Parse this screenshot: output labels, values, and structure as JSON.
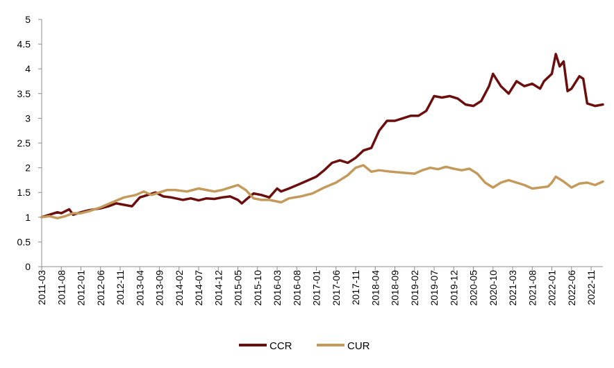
{
  "chart_data": {
    "type": "line",
    "title": "",
    "xlabel": "",
    "ylabel": "",
    "ylim": [
      0,
      5
    ],
    "y_ticks": [
      "0",
      "0.5",
      "1",
      "1.5",
      "2",
      "2.5",
      "3",
      "3.5",
      "4",
      "4.5",
      "5"
    ],
    "x_ticks": [
      "2011-03",
      "2011-08",
      "2012-01",
      "2012-06",
      "2012-11",
      "2013-04",
      "2013-09",
      "2014-02",
      "2014-07",
      "2014-12",
      "2015-05",
      "2015-10",
      "2016-03",
      "2016-08",
      "2017-01",
      "2017-06",
      "2017-11",
      "2018-04",
      "2018-09",
      "2019-02",
      "2019-07",
      "2019-12",
      "2020-05",
      "2020-10",
      "2021-03",
      "2021-08",
      "2022-01",
      "2022-06",
      "2022-11"
    ],
    "x_range": [
      "2011-03",
      "2023-02"
    ],
    "grid": false,
    "legend_position": "bottom",
    "series": [
      {
        "name": "CCR",
        "color": "#6B0E0E",
        "points": [
          [
            "2011-03",
            1.0
          ],
          [
            "2011-05",
            1.05
          ],
          [
            "2011-07",
            1.1
          ],
          [
            "2011-08",
            1.08
          ],
          [
            "2011-10",
            1.16
          ],
          [
            "2011-11",
            1.05
          ],
          [
            "2012-01",
            1.1
          ],
          [
            "2012-03",
            1.14
          ],
          [
            "2012-06",
            1.18
          ],
          [
            "2012-08",
            1.22
          ],
          [
            "2012-10",
            1.28
          ],
          [
            "2012-12",
            1.25
          ],
          [
            "2013-02",
            1.22
          ],
          [
            "2013-04",
            1.4
          ],
          [
            "2013-06",
            1.45
          ],
          [
            "2013-08",
            1.5
          ],
          [
            "2013-10",
            1.42
          ],
          [
            "2013-12",
            1.4
          ],
          [
            "2014-03",
            1.35
          ],
          [
            "2014-05",
            1.38
          ],
          [
            "2014-07",
            1.34
          ],
          [
            "2014-09",
            1.38
          ],
          [
            "2014-11",
            1.37
          ],
          [
            "2015-01",
            1.4
          ],
          [
            "2015-03",
            1.42
          ],
          [
            "2015-05",
            1.35
          ],
          [
            "2015-06",
            1.28
          ],
          [
            "2015-07",
            1.35
          ],
          [
            "2015-09",
            1.48
          ],
          [
            "2015-11",
            1.45
          ],
          [
            "2016-01",
            1.4
          ],
          [
            "2016-03",
            1.58
          ],
          [
            "2016-04",
            1.52
          ],
          [
            "2016-06",
            1.58
          ],
          [
            "2016-09",
            1.68
          ],
          [
            "2016-11",
            1.75
          ],
          [
            "2017-01",
            1.82
          ],
          [
            "2017-03",
            1.95
          ],
          [
            "2017-05",
            2.1
          ],
          [
            "2017-07",
            2.15
          ],
          [
            "2017-09",
            2.1
          ],
          [
            "2017-11",
            2.2
          ],
          [
            "2018-01",
            2.35
          ],
          [
            "2018-03",
            2.4
          ],
          [
            "2018-05",
            2.75
          ],
          [
            "2018-07",
            2.95
          ],
          [
            "2018-09",
            2.95
          ],
          [
            "2018-11",
            3.0
          ],
          [
            "2019-01",
            3.05
          ],
          [
            "2019-03",
            3.05
          ],
          [
            "2019-05",
            3.15
          ],
          [
            "2019-07",
            3.45
          ],
          [
            "2019-09",
            3.42
          ],
          [
            "2019-11",
            3.45
          ],
          [
            "2020-01",
            3.4
          ],
          [
            "2020-03",
            3.28
          ],
          [
            "2020-05",
            3.25
          ],
          [
            "2020-07",
            3.35
          ],
          [
            "2020-09",
            3.65
          ],
          [
            "2020-10",
            3.9
          ],
          [
            "2020-12",
            3.65
          ],
          [
            "2021-02",
            3.5
          ],
          [
            "2021-04",
            3.75
          ],
          [
            "2021-06",
            3.65
          ],
          [
            "2021-08",
            3.7
          ],
          [
            "2021-10",
            3.6
          ],
          [
            "2021-11",
            3.75
          ],
          [
            "2022-01",
            3.9
          ],
          [
            "2022-02",
            4.3
          ],
          [
            "2022-03",
            4.05
          ],
          [
            "2022-04",
            4.15
          ],
          [
            "2022-05",
            3.55
          ],
          [
            "2022-06",
            3.6
          ],
          [
            "2022-08",
            3.85
          ],
          [
            "2022-09",
            3.8
          ],
          [
            "2022-10",
            3.3
          ],
          [
            "2022-12",
            3.25
          ],
          [
            "2023-02",
            3.28
          ]
        ]
      },
      {
        "name": "CUR",
        "color": "#C39A5C",
        "points": [
          [
            "2011-03",
            1.0
          ],
          [
            "2011-05",
            1.02
          ],
          [
            "2011-07",
            0.98
          ],
          [
            "2011-09",
            1.02
          ],
          [
            "2011-11",
            1.08
          ],
          [
            "2012-01",
            1.08
          ],
          [
            "2012-03",
            1.12
          ],
          [
            "2012-06",
            1.2
          ],
          [
            "2012-09",
            1.3
          ],
          [
            "2012-12",
            1.4
          ],
          [
            "2013-03",
            1.45
          ],
          [
            "2013-05",
            1.52
          ],
          [
            "2013-07",
            1.45
          ],
          [
            "2013-09",
            1.5
          ],
          [
            "2013-11",
            1.55
          ],
          [
            "2014-01",
            1.55
          ],
          [
            "2014-04",
            1.52
          ],
          [
            "2014-07",
            1.58
          ],
          [
            "2014-09",
            1.55
          ],
          [
            "2014-11",
            1.52
          ],
          [
            "2015-01",
            1.55
          ],
          [
            "2015-03",
            1.6
          ],
          [
            "2015-05",
            1.65
          ],
          [
            "2015-07",
            1.55
          ],
          [
            "2015-09",
            1.38
          ],
          [
            "2015-11",
            1.35
          ],
          [
            "2016-01",
            1.35
          ],
          [
            "2016-04",
            1.3
          ],
          [
            "2016-06",
            1.38
          ],
          [
            "2016-09",
            1.42
          ],
          [
            "2016-12",
            1.48
          ],
          [
            "2017-03",
            1.6
          ],
          [
            "2017-06",
            1.7
          ],
          [
            "2017-09",
            1.85
          ],
          [
            "2017-11",
            2.0
          ],
          [
            "2018-01",
            2.05
          ],
          [
            "2018-03",
            1.92
          ],
          [
            "2018-05",
            1.95
          ],
          [
            "2018-08",
            1.92
          ],
          [
            "2018-11",
            1.9
          ],
          [
            "2019-02",
            1.88
          ],
          [
            "2019-04",
            1.95
          ],
          [
            "2019-06",
            2.0
          ],
          [
            "2019-08",
            1.97
          ],
          [
            "2019-10",
            2.02
          ],
          [
            "2019-12",
            1.98
          ],
          [
            "2020-02",
            1.95
          ],
          [
            "2020-04",
            1.98
          ],
          [
            "2020-06",
            1.88
          ],
          [
            "2020-08",
            1.7
          ],
          [
            "2020-10",
            1.6
          ],
          [
            "2020-12",
            1.7
          ],
          [
            "2021-02",
            1.75
          ],
          [
            "2021-04",
            1.7
          ],
          [
            "2021-06",
            1.65
          ],
          [
            "2021-08",
            1.58
          ],
          [
            "2021-10",
            1.6
          ],
          [
            "2021-12",
            1.62
          ],
          [
            "2022-01",
            1.7
          ],
          [
            "2022-02",
            1.82
          ],
          [
            "2022-04",
            1.72
          ],
          [
            "2022-06",
            1.6
          ],
          [
            "2022-08",
            1.68
          ],
          [
            "2022-10",
            1.7
          ],
          [
            "2022-12",
            1.65
          ],
          [
            "2023-02",
            1.72
          ]
        ]
      }
    ]
  }
}
